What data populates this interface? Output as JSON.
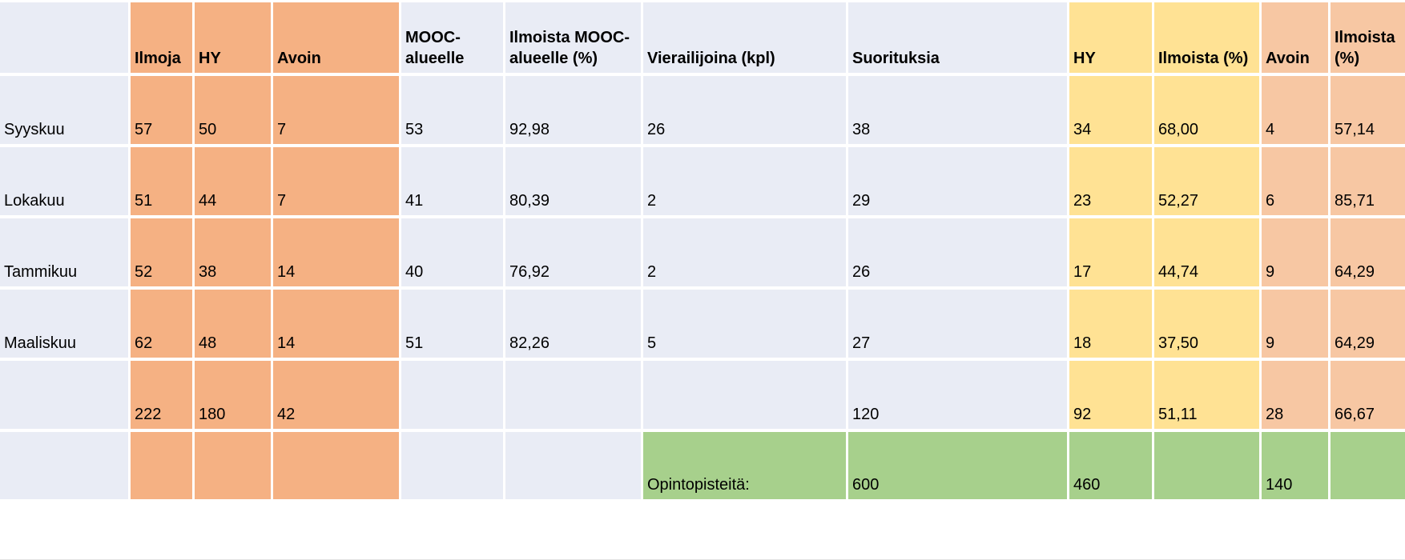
{
  "colors": {
    "background": "#FFFFFF",
    "gridline": "#FFFFFF",
    "cell_default": "#E9ECF5",
    "orange": "#F5B183",
    "yellow": "#FFE294",
    "light_orange": "#F7C7A3",
    "green": "#A7D08C",
    "text": "#000000"
  },
  "table": {
    "columns": [
      {
        "id": "month",
        "header": "",
        "color": "default"
      },
      {
        "id": "ilmoja",
        "header": "Ilmoja",
        "color": "orange"
      },
      {
        "id": "hy",
        "header": "HY",
        "color": "orange"
      },
      {
        "id": "avoin",
        "header": "Avoin",
        "color": "orange"
      },
      {
        "id": "mooc-alueelle",
        "header": "MOOC-alueelle",
        "color": "default"
      },
      {
        "id": "ilmoista-mooc-alueelle-pct",
        "header": "Ilmoista MOOC-alueelle (%)",
        "color": "default"
      },
      {
        "id": "vierailijoina-kpl",
        "header": "Vierailijoina (kpl)",
        "color": "default"
      },
      {
        "id": "suorituksia",
        "header": "Suorituksia",
        "color": "default"
      },
      {
        "id": "hy-avoin-side",
        "header": "HY",
        "color": "yellow"
      },
      {
        "id": "ilmoista-pct-hy",
        "header": "Ilmoista (%)",
        "color": "yellow"
      },
      {
        "id": "avoin-side",
        "header": "Avoin",
        "color": "light_orange"
      },
      {
        "id": "ilmoista-pct-avoin",
        "header": "Ilmoista (%)",
        "color": "light_orange"
      }
    ],
    "rows": [
      {
        "cells": [
          "Syyskuu",
          "57",
          "50",
          "7",
          "53",
          "92,98",
          "26",
          "38",
          "34",
          "68,00",
          "4",
          "57,14"
        ]
      },
      {
        "cells": [
          "Lokakuu",
          "51",
          "44",
          "7",
          "41",
          "80,39",
          "2",
          "29",
          "23",
          "52,27",
          "6",
          "85,71"
        ]
      },
      {
        "cells": [
          "Tammikuu",
          "52",
          "38",
          "14",
          "40",
          "76,92",
          "2",
          "26",
          "17",
          "44,74",
          "9",
          "64,29"
        ]
      },
      {
        "cells": [
          "Maaliskuu",
          "62",
          "48",
          "14",
          "51",
          "82,26",
          "5",
          "27",
          "18",
          "37,50",
          "9",
          "64,29"
        ]
      },
      {
        "cells": [
          "",
          "222",
          "180",
          "42",
          "",
          "",
          "",
          "120",
          "92",
          "51,11",
          "28",
          "66,67"
        ]
      },
      {
        "cells": [
          "",
          "",
          "",
          "",
          "",
          "",
          "Opintopisteitä:",
          "600",
          "460",
          "",
          "140",
          ""
        ],
        "green_from_col": 6
      }
    ]
  }
}
